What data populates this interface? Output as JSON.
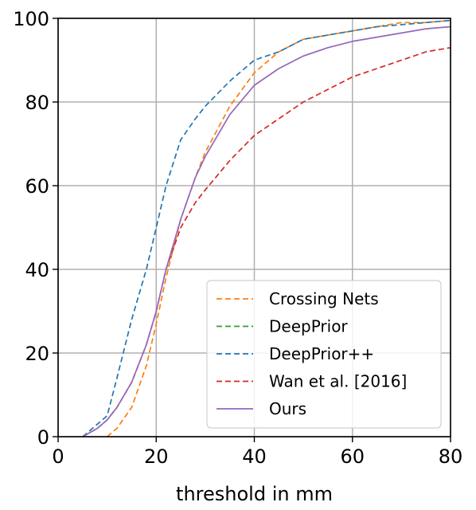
{
  "chart_data": {
    "type": "line",
    "title": "",
    "xlabel": "threshold in mm",
    "ylabel": "",
    "xlim": [
      0,
      80
    ],
    "ylim": [
      0,
      100
    ],
    "xticks": [
      0,
      20,
      40,
      60,
      80
    ],
    "yticks": [
      0,
      20,
      40,
      60,
      80,
      100
    ],
    "grid": true,
    "legend_position": "lower-right",
    "series": [
      {
        "name": "Crossing Nets",
        "color": "#ff7f0e",
        "dash": "dashed",
        "x": [
          10,
          12,
          15,
          18,
          20,
          22,
          25,
          28,
          30,
          35,
          40,
          45,
          50,
          55,
          60,
          65,
          70,
          75,
          80
        ],
        "y": [
          0,
          2,
          7,
          17,
          27,
          38,
          52,
          62,
          68,
          79,
          87,
          92,
          95,
          96,
          97,
          98,
          99,
          99,
          99.5
        ]
      },
      {
        "name": "DeepPrior",
        "color": "#2ca02c",
        "dash": "dashed",
        "x": [],
        "y": []
      },
      {
        "name": "DeepPrior++",
        "color": "#1f77b4",
        "dash": "dashed",
        "x": [
          5,
          8,
          10,
          12,
          15,
          18,
          20,
          22,
          25,
          28,
          30,
          35,
          40,
          45,
          50,
          55,
          60,
          65,
          70,
          75,
          80
        ],
        "y": [
          0,
          3,
          5,
          14,
          28,
          40,
          50,
          60,
          71,
          76,
          79,
          85,
          90,
          92,
          95,
          96,
          97,
          98,
          98.5,
          99,
          99.5
        ]
      },
      {
        "name": "Wan et al. [2016]",
        "color": "#d62728",
        "dash": "dashed",
        "x": [
          5,
          8,
          10,
          12,
          15,
          18,
          20,
          22,
          25,
          28,
          30,
          35,
          40,
          45,
          50,
          55,
          60,
          65,
          70,
          75,
          80
        ],
        "y": [
          0,
          2,
          4,
          7,
          13,
          22,
          30,
          40,
          50,
          56,
          59,
          66,
          72,
          76,
          80,
          83,
          86,
          88,
          90,
          92,
          93
        ]
      },
      {
        "name": "Ours",
        "color": "#9467bd",
        "dash": "solid",
        "x": [
          5,
          8,
          10,
          12,
          15,
          18,
          20,
          22,
          25,
          28,
          30,
          35,
          40,
          45,
          50,
          55,
          60,
          65,
          70,
          75,
          80
        ],
        "y": [
          0,
          2,
          4,
          7,
          13,
          22,
          30,
          40,
          52,
          62,
          67,
          77,
          84,
          88,
          91,
          93,
          94.5,
          95.5,
          96.5,
          97.5,
          98
        ]
      }
    ]
  }
}
